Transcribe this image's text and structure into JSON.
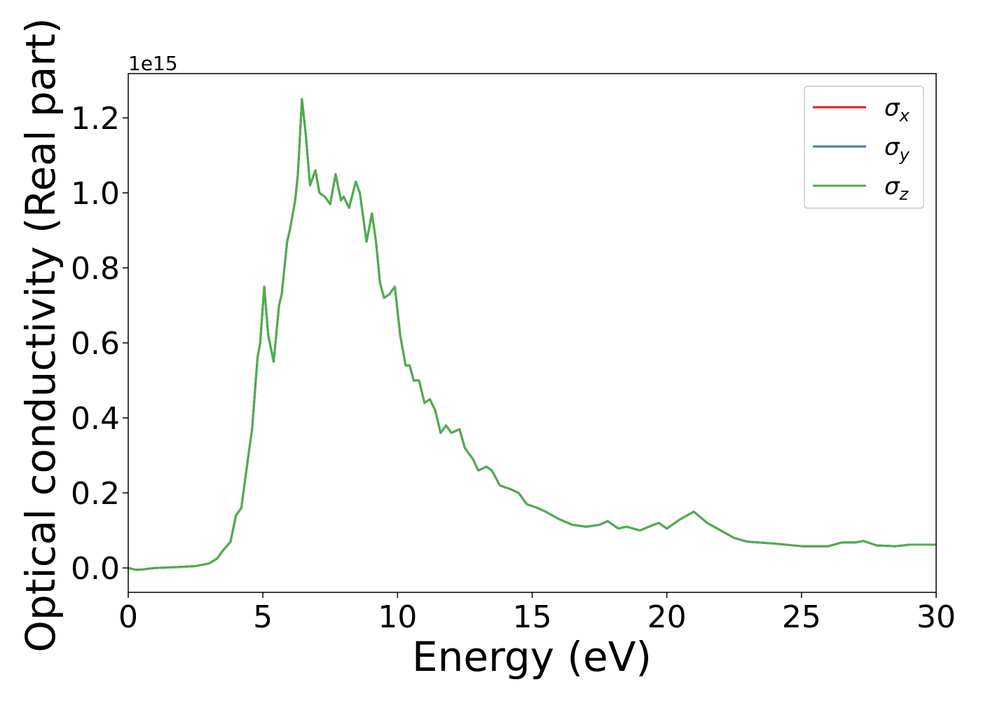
{
  "chart_data": {
    "type": "line",
    "xlabel": "Energy (eV)",
    "ylabel": "Optical conductivity (Real part)",
    "y_offset_label": "1e15",
    "x": [
      0,
      0.3,
      0.5,
      1,
      2,
      2.5,
      3,
      3.3,
      3.5,
      3.8,
      4.0,
      4.2,
      4.5,
      4.6,
      4.8,
      4.9,
      5.05,
      5.2,
      5.4,
      5.6,
      5.7,
      5.9,
      6.0,
      6.2,
      6.3,
      6.45,
      6.6,
      6.75,
      6.95,
      7.1,
      7.3,
      7.5,
      7.7,
      7.9,
      8.0,
      8.2,
      8.45,
      8.6,
      8.85,
      9.05,
      9.2,
      9.35,
      9.5,
      9.7,
      9.9,
      10.1,
      10.3,
      10.45,
      10.6,
      10.8,
      11.0,
      11.2,
      11.4,
      11.6,
      11.8,
      12.0,
      12.3,
      12.5,
      12.8,
      13.0,
      13.3,
      13.5,
      13.8,
      14.2,
      14.5,
      14.8,
      15.2,
      15.5,
      16,
      16.5,
      17,
      17.5,
      17.8,
      18.2,
      18.5,
      19,
      19.5,
      19.7,
      20,
      20.5,
      21,
      21.5,
      22,
      22.5,
      23,
      24,
      25,
      26,
      26.5,
      27,
      27.3,
      27.8,
      28.5,
      29,
      30
    ],
    "series": [
      {
        "name": "σ_x",
        "color": "#e41a1c",
        "values": [
          0.0,
          -0.005,
          -0.004,
          0.0,
          0.003,
          0.005,
          0.012,
          0.025,
          0.045,
          0.07,
          0.14,
          0.16,
          0.32,
          0.37,
          0.56,
          0.6,
          0.75,
          0.62,
          0.55,
          0.7,
          0.73,
          0.87,
          0.9,
          0.98,
          1.05,
          1.25,
          1.15,
          1.02,
          1.06,
          1.0,
          0.99,
          0.97,
          1.05,
          0.98,
          0.99,
          0.96,
          1.03,
          1.0,
          0.87,
          0.945,
          0.87,
          0.76,
          0.72,
          0.73,
          0.75,
          0.62,
          0.54,
          0.54,
          0.5,
          0.5,
          0.44,
          0.45,
          0.42,
          0.36,
          0.38,
          0.36,
          0.37,
          0.32,
          0.29,
          0.26,
          0.27,
          0.26,
          0.22,
          0.21,
          0.2,
          0.17,
          0.16,
          0.15,
          0.13,
          0.115,
          0.11,
          0.115,
          0.125,
          0.105,
          0.11,
          0.1,
          0.115,
          0.12,
          0.105,
          0.13,
          0.15,
          0.12,
          0.1,
          0.08,
          0.07,
          0.065,
          0.058,
          0.058,
          0.068,
          0.068,
          0.072,
          0.06,
          0.058,
          0.062,
          0.062
        ]
      },
      {
        "name": "σ_y",
        "color": "#377eb8",
        "values": [
          0.0,
          -0.005,
          -0.004,
          0.0,
          0.003,
          0.005,
          0.012,
          0.025,
          0.045,
          0.07,
          0.14,
          0.16,
          0.32,
          0.37,
          0.56,
          0.6,
          0.75,
          0.62,
          0.55,
          0.7,
          0.73,
          0.87,
          0.9,
          0.98,
          1.05,
          1.25,
          1.15,
          1.02,
          1.06,
          1.0,
          0.99,
          0.97,
          1.05,
          0.98,
          0.99,
          0.96,
          1.03,
          1.0,
          0.87,
          0.945,
          0.87,
          0.76,
          0.72,
          0.73,
          0.75,
          0.62,
          0.54,
          0.54,
          0.5,
          0.5,
          0.44,
          0.45,
          0.42,
          0.36,
          0.38,
          0.36,
          0.37,
          0.32,
          0.29,
          0.26,
          0.27,
          0.26,
          0.22,
          0.21,
          0.2,
          0.17,
          0.16,
          0.15,
          0.13,
          0.115,
          0.11,
          0.115,
          0.125,
          0.105,
          0.11,
          0.1,
          0.115,
          0.12,
          0.105,
          0.13,
          0.15,
          0.12,
          0.1,
          0.08,
          0.07,
          0.065,
          0.058,
          0.058,
          0.068,
          0.068,
          0.072,
          0.06,
          0.058,
          0.062,
          0.062
        ]
      },
      {
        "name": "σ_z",
        "color": "#4daf4a",
        "values": [
          0.0,
          -0.005,
          -0.004,
          0.0,
          0.003,
          0.005,
          0.012,
          0.025,
          0.045,
          0.07,
          0.14,
          0.16,
          0.32,
          0.37,
          0.56,
          0.6,
          0.75,
          0.62,
          0.55,
          0.7,
          0.73,
          0.87,
          0.9,
          0.98,
          1.05,
          1.25,
          1.15,
          1.02,
          1.06,
          1.0,
          0.99,
          0.97,
          1.05,
          0.98,
          0.99,
          0.96,
          1.03,
          1.0,
          0.87,
          0.945,
          0.87,
          0.76,
          0.72,
          0.73,
          0.75,
          0.62,
          0.54,
          0.54,
          0.5,
          0.5,
          0.44,
          0.45,
          0.42,
          0.36,
          0.38,
          0.36,
          0.37,
          0.32,
          0.29,
          0.26,
          0.27,
          0.26,
          0.22,
          0.21,
          0.2,
          0.17,
          0.16,
          0.15,
          0.13,
          0.115,
          0.11,
          0.115,
          0.125,
          0.105,
          0.11,
          0.1,
          0.115,
          0.12,
          0.105,
          0.13,
          0.15,
          0.12,
          0.1,
          0.08,
          0.07,
          0.065,
          0.058,
          0.058,
          0.068,
          0.068,
          0.072,
          0.06,
          0.058,
          0.062,
          0.062
        ]
      }
    ],
    "xlim": [
      0,
      30
    ],
    "xticks": [
      0,
      5,
      10,
      15,
      20,
      25,
      30
    ],
    "ylim": [
      -0.065,
      1.318
    ],
    "yticks": [
      {
        "value": 0,
        "label": "0.0"
      },
      0.2,
      0.4,
      0.6,
      0.8,
      {
        "value": 1,
        "label": "1.0"
      },
      1.2
    ],
    "legend": "upper right"
  }
}
